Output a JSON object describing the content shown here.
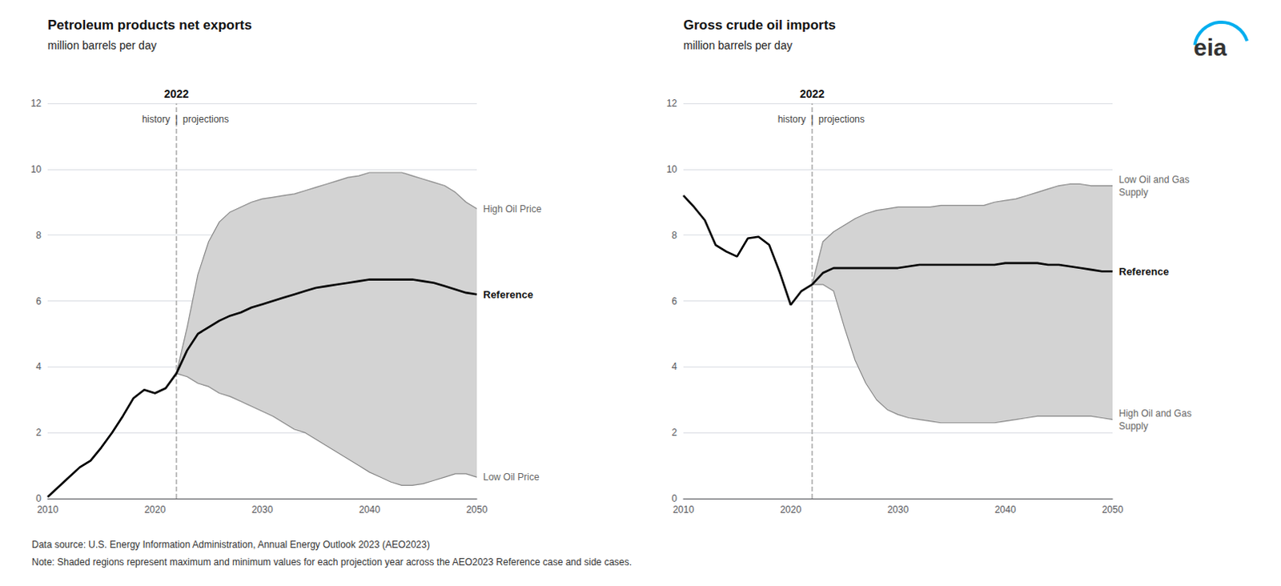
{
  "chart_data": [
    {
      "type": "line",
      "title": "Petroleum products net exports",
      "subtitle": "million barrels per day",
      "xlim": [
        2010,
        2050
      ],
      "xticks": [
        2010,
        2020,
        2030,
        2040,
        2050
      ],
      "ylim": [
        0,
        12
      ],
      "yticks": [
        0,
        2,
        4,
        6,
        8,
        10,
        12
      ],
      "grid": true,
      "divider": {
        "x": 2022,
        "label": "2022",
        "left_text": "history",
        "separator": "|",
        "right_text": "projections"
      },
      "series": [
        {
          "name": "High Oil Price",
          "type": "band",
          "color": "#888888",
          "x": [
            2022,
            2023,
            2024,
            2025,
            2026,
            2027,
            2028,
            2029,
            2030,
            2031,
            2032,
            2033,
            2034,
            2035,
            2036,
            2037,
            2038,
            2039,
            2040,
            2041,
            2042,
            2043,
            2044,
            2045,
            2046,
            2047,
            2048,
            2049,
            2050
          ],
          "values": [
            3.8,
            5.2,
            6.8,
            7.8,
            8.4,
            8.7,
            8.85,
            9.0,
            9.1,
            9.15,
            9.2,
            9.25,
            9.35,
            9.45,
            9.55,
            9.65,
            9.75,
            9.8,
            9.9,
            9.9,
            9.9,
            9.9,
            9.8,
            9.7,
            9.6,
            9.5,
            9.3,
            9.0,
            8.8
          ]
        },
        {
          "name": "Low Oil Price",
          "type": "band",
          "color": "#888888",
          "x": [
            2022,
            2023,
            2024,
            2025,
            2026,
            2027,
            2028,
            2029,
            2030,
            2031,
            2032,
            2033,
            2034,
            2035,
            2036,
            2037,
            2038,
            2039,
            2040,
            2041,
            2042,
            2043,
            2044,
            2045,
            2046,
            2047,
            2048,
            2049,
            2050
          ],
          "values": [
            3.8,
            3.7,
            3.5,
            3.4,
            3.2,
            3.1,
            2.95,
            2.8,
            2.65,
            2.5,
            2.3,
            2.1,
            2.0,
            1.8,
            1.6,
            1.4,
            1.2,
            1.0,
            0.8,
            0.65,
            0.5,
            0.4,
            0.4,
            0.45,
            0.55,
            0.65,
            0.75,
            0.75,
            0.65
          ]
        },
        {
          "name": "Reference",
          "type": "line",
          "color": "#000000",
          "x": [
            2010,
            2011,
            2012,
            2013,
            2014,
            2015,
            2016,
            2017,
            2018,
            2019,
            2020,
            2021,
            2022,
            2023,
            2024,
            2025,
            2026,
            2027,
            2028,
            2029,
            2030,
            2031,
            2032,
            2033,
            2034,
            2035,
            2036,
            2037,
            2038,
            2039,
            2040,
            2041,
            2042,
            2043,
            2044,
            2045,
            2046,
            2047,
            2048,
            2049,
            2050
          ],
          "values": [
            0.05,
            0.35,
            0.65,
            0.95,
            1.15,
            1.55,
            2.0,
            2.5,
            3.05,
            3.3,
            3.2,
            3.35,
            3.8,
            4.5,
            5.0,
            5.2,
            5.4,
            5.55,
            5.65,
            5.8,
            5.9,
            6.0,
            6.1,
            6.2,
            6.3,
            6.4,
            6.45,
            6.5,
            6.55,
            6.6,
            6.65,
            6.65,
            6.65,
            6.65,
            6.65,
            6.6,
            6.55,
            6.45,
            6.35,
            6.25,
            6.2
          ]
        }
      ]
    },
    {
      "type": "line",
      "title": "Gross crude oil imports",
      "subtitle": "million barrels per day",
      "xlim": [
        2010,
        2050
      ],
      "xticks": [
        2010,
        2020,
        2030,
        2040,
        2050
      ],
      "ylim": [
        0,
        12
      ],
      "yticks": [
        0,
        2,
        4,
        6,
        8,
        10,
        12
      ],
      "grid": true,
      "divider": {
        "x": 2022,
        "label": "2022",
        "left_text": "history",
        "separator": "|",
        "right_text": "projections"
      },
      "series": [
        {
          "name": "High Oil and Gas\nSupply",
          "type": "band",
          "color": "#888888",
          "x": [
            2022,
            2023,
            2024,
            2025,
            2026,
            2027,
            2028,
            2029,
            2030,
            2031,
            2032,
            2033,
            2034,
            2035,
            2036,
            2037,
            2038,
            2039,
            2040,
            2041,
            2042,
            2043,
            2044,
            2045,
            2046,
            2047,
            2048,
            2049,
            2050
          ],
          "values": [
            6.5,
            6.5,
            6.3,
            5.2,
            4.2,
            3.5,
            3.0,
            2.7,
            2.55,
            2.45,
            2.4,
            2.35,
            2.3,
            2.3,
            2.3,
            2.3,
            2.3,
            2.3,
            2.35,
            2.4,
            2.45,
            2.5,
            2.5,
            2.5,
            2.5,
            2.5,
            2.5,
            2.45,
            2.4
          ]
        },
        {
          "name": "Low Oil and Gas\nSupply",
          "type": "band",
          "color": "#888888",
          "x": [
            2022,
            2023,
            2024,
            2025,
            2026,
            2027,
            2028,
            2029,
            2030,
            2031,
            2032,
            2033,
            2034,
            2035,
            2036,
            2037,
            2038,
            2039,
            2040,
            2041,
            2042,
            2043,
            2044,
            2045,
            2046,
            2047,
            2048,
            2049,
            2050
          ],
          "values": [
            6.5,
            7.8,
            8.1,
            8.3,
            8.5,
            8.65,
            8.75,
            8.8,
            8.85,
            8.85,
            8.85,
            8.85,
            8.9,
            8.9,
            8.9,
            8.9,
            8.9,
            9.0,
            9.05,
            9.1,
            9.2,
            9.3,
            9.4,
            9.5,
            9.55,
            9.55,
            9.5,
            9.5,
            9.5
          ]
        },
        {
          "name": "Reference",
          "type": "line",
          "color": "#000000",
          "x": [
            2010,
            2011,
            2012,
            2013,
            2014,
            2015,
            2016,
            2017,
            2018,
            2019,
            2020,
            2021,
            2022,
            2023,
            2024,
            2025,
            2026,
            2027,
            2028,
            2029,
            2030,
            2031,
            2032,
            2033,
            2034,
            2035,
            2036,
            2037,
            2038,
            2039,
            2040,
            2041,
            2042,
            2043,
            2044,
            2045,
            2046,
            2047,
            2048,
            2049,
            2050
          ],
          "values": [
            9.2,
            8.85,
            8.45,
            7.7,
            7.5,
            7.35,
            7.9,
            7.95,
            7.7,
            6.85,
            5.88,
            6.3,
            6.5,
            6.85,
            7.0,
            7.0,
            7.0,
            7.0,
            7.0,
            7.0,
            7.0,
            7.05,
            7.1,
            7.1,
            7.1,
            7.1,
            7.1,
            7.1,
            7.1,
            7.1,
            7.15,
            7.15,
            7.15,
            7.15,
            7.1,
            7.1,
            7.05,
            7.0,
            6.95,
            6.9,
            6.9
          ]
        }
      ]
    }
  ],
  "footnotes": [
    "Data source: U.S. Energy Information Administration, Annual Energy Outlook 2023 (AEO2023)",
    "Note: Shaded regions represent maximum and minimum values for each projection year across the AEO2023 Reference case and side cases."
  ],
  "logo": "eia"
}
